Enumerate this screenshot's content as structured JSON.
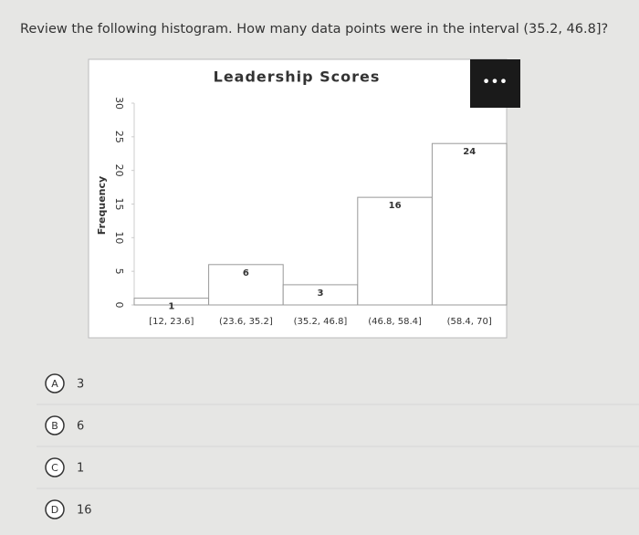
{
  "question": "Review the following histogram. How many data points were in the interval (35.2, 46.8]?",
  "chart_data": {
    "type": "bar",
    "title": "Leadership Scores",
    "y_label": "Frequency",
    "categories": [
      "[12, 23.6]",
      "(23.6, 35.2]",
      "(35.2, 46.8]",
      "(46.8, 58.4]",
      "(58.4, 70]"
    ],
    "values": [
      1,
      6,
      3,
      16,
      24
    ],
    "color": "#ffffff",
    "ylim": [
      0,
      30
    ],
    "yticks": [
      0,
      5,
      10,
      15,
      20,
      25,
      30
    ],
    "grid": false
  },
  "options": [
    {
      "letter": "A",
      "text": "3"
    },
    {
      "letter": "B",
      "text": "6"
    },
    {
      "letter": "C",
      "text": "1"
    },
    {
      "letter": "D",
      "text": "16"
    }
  ]
}
